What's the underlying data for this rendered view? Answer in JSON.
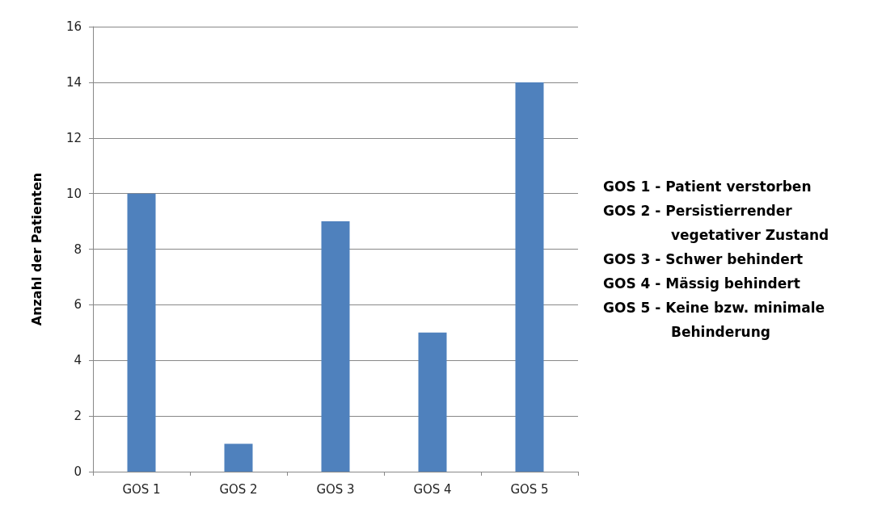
{
  "chart_data": {
    "type": "bar",
    "ylabel": "Anzahl der Patienten",
    "categories": [
      "GOS 1",
      "GOS 2",
      "GOS 3",
      "GOS 4",
      "GOS 5"
    ],
    "values": [
      10,
      1,
      9,
      5,
      14
    ],
    "color": "#4f81bd",
    "ylim": [
      0,
      16
    ],
    "yticks": [
      0,
      2,
      4,
      6,
      8,
      10,
      12,
      14,
      16
    ],
    "grid": "y",
    "annotations": [
      "GOS 1 - Patient verstorben",
      "GOS 2 - Persistierrender vegetativer Zustand",
      "GOS 3 - Schwer behindert",
      "GOS 4 - Mässig behindert",
      "GOS 5 - Keine bzw. minimale Behinderung"
    ]
  }
}
